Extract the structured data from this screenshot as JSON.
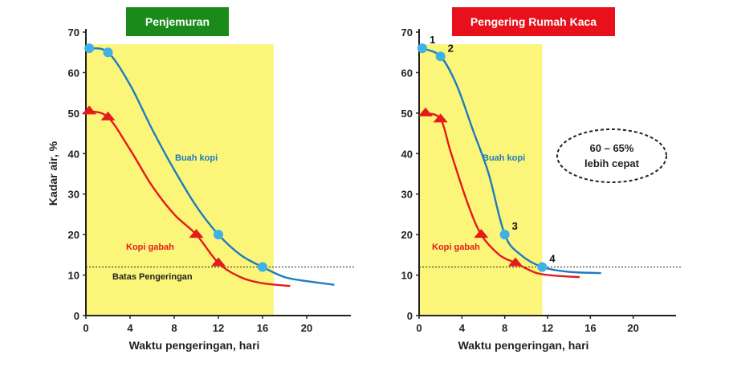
{
  "chart_data": [
    {
      "type": "line",
      "title": "Penjemuran",
      "title_color": "#1a8a1a",
      "xlabel": "Waktu pengeringan, hari",
      "ylabel": "Kadar air, %",
      "xlim": [
        0,
        24
      ],
      "ylim": [
        0,
        70
      ],
      "xticks": [
        0,
        4,
        8,
        12,
        16,
        20
      ],
      "yticks": [
        0,
        10,
        20,
        30,
        40,
        50,
        60,
        70
      ],
      "shaded_region": {
        "x": [
          0,
          17
        ],
        "y": [
          0,
          67
        ],
        "color": "#fbf57a"
      },
      "limit_line": {
        "y": 12,
        "label": "Batas Pengeringan"
      },
      "series": [
        {
          "name": "Buah kopi",
          "color": "#1f7bc0",
          "marker": "circle",
          "marker_color": "#3fb0e8",
          "curve": [
            [
              0.3,
              66
            ],
            [
              2,
              65
            ],
            [
              4,
              57
            ],
            [
              6,
              46
            ],
            [
              8,
              36
            ],
            [
              10,
              27
            ],
            [
              12,
              20
            ],
            [
              14,
              15
            ],
            [
              16,
              12
            ],
            [
              18,
              9.5
            ],
            [
              20,
              8.5
            ],
            [
              22.5,
              7.6
            ]
          ],
          "points": [
            [
              0.3,
              66
            ],
            [
              2,
              65
            ],
            [
              12,
              20
            ],
            [
              16,
              12
            ]
          ]
        },
        {
          "name": "Kopi gabah",
          "color": "#e41b1b",
          "marker": "triangle",
          "marker_color": "#e41b1b",
          "curve": [
            [
              0.3,
              50.5
            ],
            [
              2,
              49
            ],
            [
              4,
              41
            ],
            [
              6,
              32
            ],
            [
              8,
              25
            ],
            [
              10,
              20
            ],
            [
              12,
              13
            ],
            [
              14,
              9.5
            ],
            [
              16,
              8
            ],
            [
              18.5,
              7.3
            ]
          ],
          "points": [
            [
              0.3,
              50.5
            ],
            [
              2,
              49
            ],
            [
              10,
              20
            ],
            [
              12,
              13
            ]
          ]
        }
      ]
    },
    {
      "type": "line",
      "title": "Pengering Rumah Kaca",
      "title_color": "#e8101a",
      "xlabel": "Waktu pengeringan, hari",
      "ylabel": "",
      "xlim": [
        0,
        24
      ],
      "ylim": [
        0,
        70
      ],
      "xticks": [
        0,
        4,
        8,
        12,
        16,
        20
      ],
      "yticks": [
        0,
        10,
        20,
        30,
        40,
        50,
        60,
        70
      ],
      "shaded_region": {
        "x": [
          0,
          11.5
        ],
        "y": [
          0,
          67
        ],
        "color": "#fbf57a"
      },
      "limit_line": {
        "y": 12
      },
      "callout": [
        "60 – 65%",
        "lebih cepat"
      ],
      "series": [
        {
          "name": "Buah kopi",
          "color": "#1f7bc0",
          "marker": "circle",
          "marker_color": "#3fb0e8",
          "curve": [
            [
              0.3,
              66
            ],
            [
              2,
              64
            ],
            [
              3.5,
              57
            ],
            [
              5,
              46
            ],
            [
              6.5,
              35
            ],
            [
              8,
              20
            ],
            [
              9.5,
              15
            ],
            [
              11.5,
              12
            ],
            [
              14,
              10.8
            ],
            [
              17,
              10.5
            ]
          ],
          "points": [
            [
              0.3,
              66
            ],
            [
              2,
              64
            ],
            [
              8,
              20
            ],
            [
              11.5,
              12
            ]
          ],
          "point_labels": [
            "1",
            "2",
            "3",
            "4"
          ]
        },
        {
          "name": "Kopi gabah",
          "color": "#e41b1b",
          "marker": "triangle",
          "marker_color": "#e41b1b",
          "curve": [
            [
              0.6,
              50
            ],
            [
              2,
              48.5
            ],
            [
              3,
              40
            ],
            [
              4.5,
              28
            ],
            [
              5.8,
              20
            ],
            [
              7.5,
              15
            ],
            [
              9,
              13
            ],
            [
              11,
              10.5
            ],
            [
              13,
              9.8
            ],
            [
              15,
              9.5
            ]
          ],
          "points": [
            [
              0.6,
              50
            ],
            [
              2,
              48.5
            ],
            [
              5.8,
              20
            ],
            [
              9,
              13
            ]
          ]
        }
      ]
    }
  ]
}
